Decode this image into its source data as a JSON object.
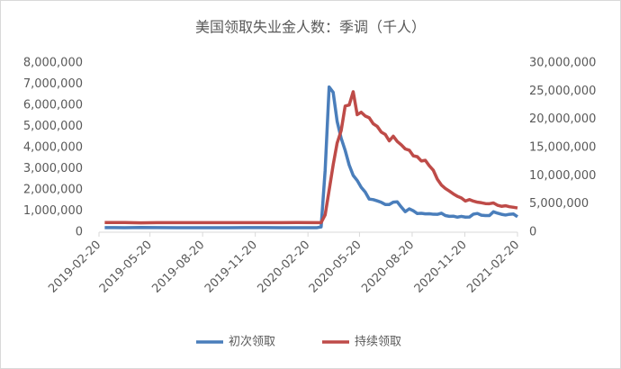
{
  "chart_data": {
    "type": "line",
    "title": "美国领取失业金人数：季调（千人）",
    "x": [
      "2019-03-02",
      "2019-04-06",
      "2019-05-04",
      "2019-06-01",
      "2019-07-06",
      "2019-08-03",
      "2019-09-07",
      "2019-10-05",
      "2019-11-02",
      "2019-12-07",
      "2020-01-04",
      "2020-02-01",
      "2020-03-07",
      "2020-03-14",
      "2020-03-21",
      "2020-03-28",
      "2020-04-04",
      "2020-04-11",
      "2020-04-18",
      "2020-04-25",
      "2020-05-02",
      "2020-05-09",
      "2020-05-16",
      "2020-05-23",
      "2020-05-30",
      "2020-06-06",
      "2020-06-13",
      "2020-06-20",
      "2020-06-27",
      "2020-07-04",
      "2020-07-11",
      "2020-07-18",
      "2020-07-25",
      "2020-08-01",
      "2020-08-08",
      "2020-08-15",
      "2020-08-22",
      "2020-08-29",
      "2020-09-05",
      "2020-09-12",
      "2020-09-19",
      "2020-09-26",
      "2020-10-03",
      "2020-10-10",
      "2020-10-17",
      "2020-10-24",
      "2020-10-31",
      "2020-11-07",
      "2020-11-14",
      "2020-11-21",
      "2020-11-28",
      "2020-12-05",
      "2020-12-12",
      "2020-12-19",
      "2020-12-26",
      "2021-01-02",
      "2021-01-09",
      "2021-01-16",
      "2021-01-23",
      "2021-01-30",
      "2021-02-06",
      "2021-02-13",
      "2021-02-20"
    ],
    "series": [
      {
        "name": "初次领取",
        "color": "#4a7ebb",
        "values": [
          220000,
          215000,
          225000,
          218000,
          215000,
          212000,
          210000,
          215000,
          218000,
          220000,
          215000,
          210000,
          215000,
          251000,
          2920000,
          6867000,
          6615000,
          5237000,
          4442000,
          3867000,
          3176000,
          2687000,
          2446000,
          2123000,
          1897000,
          1566000,
          1540000,
          1482000,
          1413000,
          1310000,
          1308000,
          1422000,
          1435000,
          1190000,
          971000,
          1106000,
          1011000,
          881000,
          893000,
          866000,
          873000,
          849000,
          845000,
          898000,
          787000,
          751000,
          757000,
          711000,
          748000,
          712000,
          716000,
          853000,
          885000,
          803000,
          787000,
          787000,
          965000,
          900000,
          847000,
          812000,
          848000,
          861000,
          730000
        ]
      },
      {
        "name": "持续领取",
        "color": "#be4b48",
        "axis": "y2",
        "values": [
          1720000,
          1710000,
          1650000,
          1700000,
          1700000,
          1700000,
          1690000,
          1700000,
          1690000,
          1700000,
          1700000,
          1710000,
          1702000,
          1702000,
          3059000,
          7446000,
          11914000,
          15819000,
          18011000,
          22377000,
          22548000,
          24912000,
          20838000,
          21268000,
          20606000,
          20289000,
          19231000,
          18760000,
          17760000,
          17338000,
          16197000,
          17018000,
          16090000,
          15486000,
          14759000,
          14535000,
          13544000,
          13385000,
          12628000,
          12747000,
          11767000,
          10976000,
          9397000,
          8373000,
          7756000,
          7285000,
          6786000,
          6370000,
          6071000,
          5520000,
          5781000,
          5508000,
          5322000,
          5219000,
          5072000,
          5054000,
          5181000,
          4785000,
          4592000,
          4690000,
          4520000,
          4419000,
          4295000
        ]
      }
    ],
    "xlim": [
      "2019-02-20",
      "2021-02-20"
    ],
    "xticks": [
      "2019-02-20",
      "2019-05-20",
      "2019-08-20",
      "2019-11-20",
      "2020-02-20",
      "2020-05-20",
      "2020-08-20",
      "2020-11-20",
      "2021-02-20"
    ],
    "ylim": [
      0,
      8000000
    ],
    "yticks": [
      0,
      {
        "value": 1000000,
        "label": "1,000,000"
      },
      {
        "value": 2000000,
        "label": "2,000,000"
      },
      {
        "value": 3000000,
        "label": "3,000,000"
      },
      {
        "value": 4000000,
        "label": "4,000,000"
      },
      {
        "value": 5000000,
        "label": "5,000,000"
      },
      {
        "value": 6000000,
        "label": "6,000,000"
      },
      {
        "value": 7000000,
        "label": "7,000,000"
      },
      {
        "value": 8000000,
        "label": "8,000,000"
      }
    ],
    "y2lim": [
      0,
      30000000
    ],
    "y2ticks": [
      0,
      {
        "value": 5000000,
        "label": "5,000,000"
      },
      {
        "value": 10000000,
        "label": "10,000,000"
      },
      {
        "value": 15000000,
        "label": "15,000,000"
      },
      {
        "value": 20000000,
        "label": "20,000,000"
      },
      {
        "value": 25000000,
        "label": "25,000,000"
      },
      {
        "value": 30000000,
        "label": "30,000,000"
      }
    ],
    "legend": "bottom"
  }
}
